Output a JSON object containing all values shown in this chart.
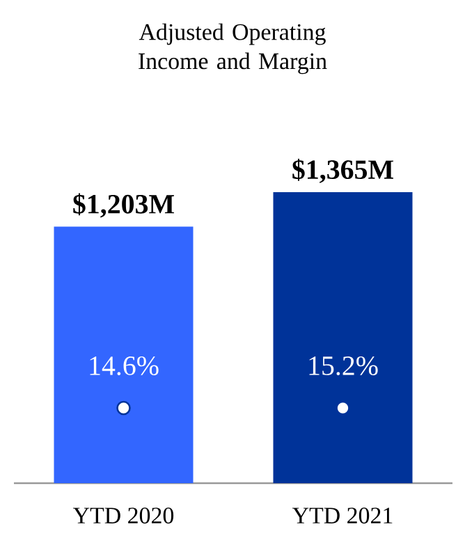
{
  "chart_data": {
    "type": "bar",
    "title": "Adjusted Operating Income and Margin",
    "categories": [
      "YTD 2020",
      "YTD 2021"
    ],
    "tick_labels": "x",
    "series": [
      {
        "colors": [
          "#3366ff",
          "#003399"
        ],
        "values": [
          1203,
          1365
        ],
        "value_labels": [
          "$1,203M",
          "$1,365M"
        ]
      }
    ],
    "annotations": [
      "14.6%",
      "15.2%"
    ]
  }
}
